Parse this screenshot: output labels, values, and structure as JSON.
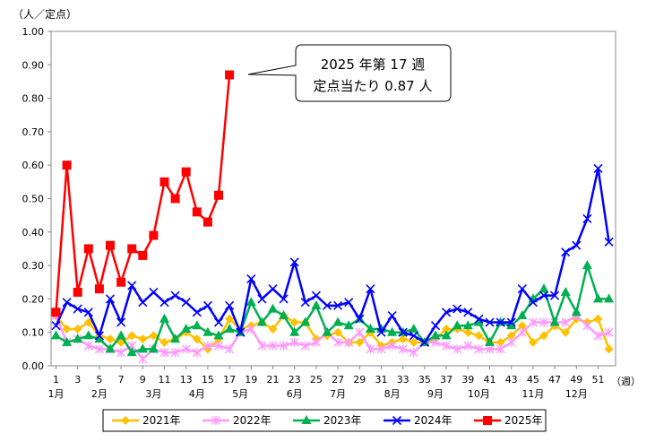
{
  "chart_data": {
    "type": "line",
    "ylabel": "（人／定点）",
    "xlabel_suffix": "（週）",
    "ylim": [
      0,
      1.0
    ],
    "y_ticks": [
      "0.00",
      "0.10",
      "0.20",
      "0.30",
      "0.40",
      "0.50",
      "0.60",
      "0.70",
      "0.80",
      "0.90",
      "1.00"
    ],
    "x_range": [
      1,
      53
    ],
    "week_ticks": [
      "1",
      "3",
      "5",
      "7",
      "9",
      "11",
      "13",
      "15",
      "17",
      "19",
      "21",
      "23",
      "25",
      "27",
      "29",
      "31",
      "33",
      "35",
      "37",
      "39",
      "41",
      "43",
      "45",
      "47",
      "49",
      "51"
    ],
    "month_labels": [
      {
        "label": "1月",
        "week": 1
      },
      {
        "label": "2月",
        "week": 5
      },
      {
        "label": "3月",
        "week": 10
      },
      {
        "label": "4月",
        "week": 14
      },
      {
        "label": "5月",
        "week": 18
      },
      {
        "label": "6月",
        "week": 23
      },
      {
        "label": "7月",
        "week": 27
      },
      {
        "label": "8月",
        "week": 32
      },
      {
        "label": "9月",
        "week": 36
      },
      {
        "label": "10月",
        "week": 40
      },
      {
        "label": "11月",
        "week": 45
      },
      {
        "label": "12月",
        "week": 49
      }
    ],
    "legend_position": "bottom",
    "grid": false,
    "series": [
      {
        "name": "2021年",
        "color": "#FFC000",
        "marker": "diamond",
        "values": [
          0.15,
          0.11,
          0.11,
          0.13,
          0.09,
          0.08,
          0.07,
          0.09,
          0.08,
          0.09,
          0.07,
          0.08,
          0.1,
          0.08,
          0.05,
          0.08,
          0.14,
          0.11,
          0.12,
          0.13,
          0.11,
          0.15,
          0.13,
          0.13,
          0.08,
          0.09,
          0.1,
          0.07,
          0.07,
          0.1,
          0.06,
          0.07,
          0.08,
          0.07,
          0.07,
          0.08,
          0.11,
          0.11,
          0.1,
          0.09,
          0.07,
          0.07,
          0.09,
          0.12,
          0.07,
          0.09,
          0.12,
          0.1,
          0.14,
          0.13,
          0.14,
          0.05
        ]
      },
      {
        "name": "2022年",
        "color": "#FF99FF",
        "marker": "star",
        "values": [
          0.15,
          0.07,
          0.08,
          0.06,
          0.05,
          0.05,
          0.04,
          0.06,
          0.02,
          0.05,
          0.04,
          0.04,
          0.05,
          0.04,
          0.06,
          0.06,
          0.05,
          0.1,
          0.11,
          0.06,
          0.06,
          0.06,
          0.07,
          0.06,
          0.07,
          0.1,
          0.07,
          0.07,
          0.1,
          0.05,
          0.05,
          0.06,
          0.05,
          0.04,
          0.07,
          0.07,
          0.06,
          0.05,
          0.06,
          0.05,
          0.05,
          0.05,
          0.07,
          0.1,
          0.13,
          0.13,
          0.13,
          0.13,
          0.15,
          0.12,
          0.09,
          0.1
        ]
      },
      {
        "name": "2023年",
        "color": "#00B050",
        "marker": "triangle",
        "values": [
          0.09,
          0.07,
          0.08,
          0.09,
          0.08,
          0.05,
          0.09,
          0.04,
          0.05,
          0.05,
          0.14,
          0.08,
          0.11,
          0.12,
          0.1,
          0.09,
          0.11,
          0.1,
          0.19,
          0.13,
          0.17,
          0.15,
          0.1,
          0.13,
          0.18,
          0.1,
          0.13,
          0.12,
          0.14,
          0.11,
          0.11,
          0.1,
          0.1,
          0.11,
          0.07,
          0.09,
          0.09,
          0.12,
          0.12,
          0.13,
          0.07,
          0.13,
          0.12,
          0.15,
          0.2,
          0.23,
          0.13,
          0.22,
          0.16,
          0.3,
          0.2,
          0.2
        ]
      },
      {
        "name": "2024年",
        "color": "#0000FF",
        "marker": "x",
        "values": [
          0.12,
          0.19,
          0.17,
          0.16,
          0.09,
          0.2,
          0.13,
          0.24,
          0.19,
          0.22,
          0.19,
          0.21,
          0.19,
          0.16,
          0.18,
          0.13,
          0.18,
          0.1,
          0.26,
          0.2,
          0.23,
          0.2,
          0.31,
          0.19,
          0.21,
          0.18,
          0.18,
          0.19,
          0.14,
          0.23,
          0.1,
          0.15,
          0.1,
          0.09,
          0.07,
          0.12,
          0.16,
          0.17,
          0.16,
          0.14,
          0.13,
          0.13,
          0.13,
          0.23,
          0.19,
          0.21,
          0.21,
          0.34,
          0.36,
          0.44,
          0.59,
          0.37
        ]
      },
      {
        "name": "2025年",
        "color": "#FF0000",
        "marker": "square",
        "values": [
          0.16,
          0.6,
          0.22,
          0.35,
          0.23,
          0.36,
          0.25,
          0.35,
          0.33,
          0.39,
          0.55,
          0.5,
          0.58,
          0.46,
          0.43,
          0.51,
          0.87
        ]
      }
    ],
    "annotation": {
      "lines": [
        "2025 年第 17 週",
        "定点当たり 0.87 人"
      ]
    }
  }
}
